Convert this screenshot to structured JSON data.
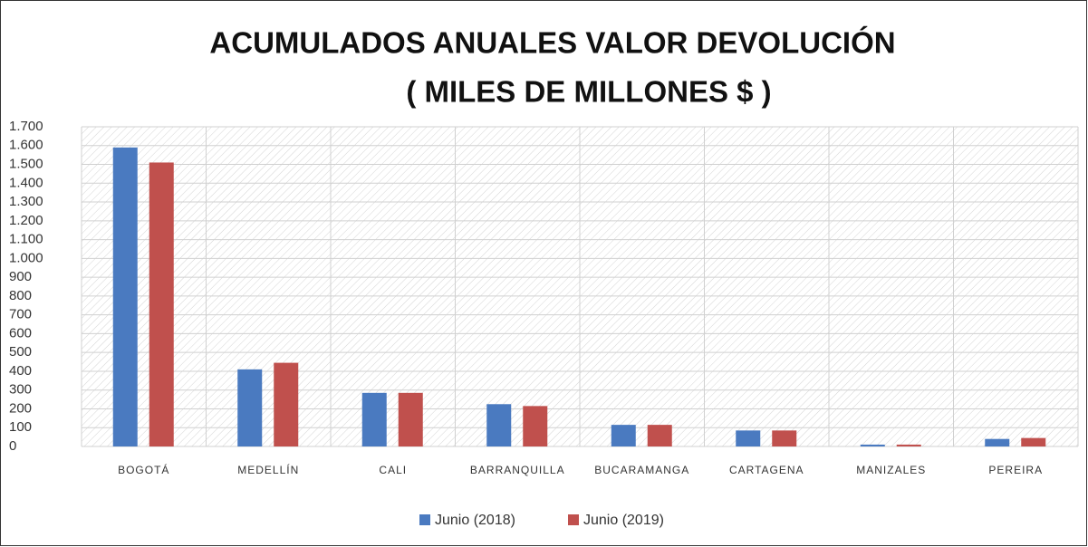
{
  "chart_data": {
    "type": "bar",
    "title": [
      "ACUMULADOS ANUALES VALOR DEVOLUCIÓN",
      "( MILES DE MILLONES $ )"
    ],
    "categories": [
      "BOGOTÁ",
      "MEDELLÍN",
      "CALI",
      "BARRANQUILLA",
      "BUCARAMANGA",
      "CARTAGENA",
      "MANIZALES",
      "PEREIRA"
    ],
    "series": [
      {
        "name": "Junio (2018)",
        "color": "#4a7ac0",
        "values": [
          1590,
          410,
          285,
          225,
          115,
          85,
          10,
          40
        ]
      },
      {
        "name": "Junio (2019)",
        "color": "#c0504d",
        "values": [
          1510,
          445,
          285,
          215,
          115,
          85,
          10,
          45
        ]
      }
    ],
    "ylim": [
      0,
      1700
    ],
    "yticks": [
      0,
      100,
      200,
      300,
      400,
      500,
      600,
      700,
      800,
      900,
      {
        "value": 1000,
        "label": "1.000"
      },
      {
        "value": 1100,
        "label": "1.100"
      },
      {
        "value": 1200,
        "label": "1.200"
      },
      {
        "value": 1300,
        "label": "1.300"
      },
      {
        "value": 1400,
        "label": "1.400"
      },
      {
        "value": 1500,
        "label": "1.500"
      },
      {
        "value": 1600,
        "label": "1.600"
      },
      {
        "value": 1700,
        "label": "1.700"
      }
    ],
    "grid": true,
    "legend": "bottom"
  }
}
